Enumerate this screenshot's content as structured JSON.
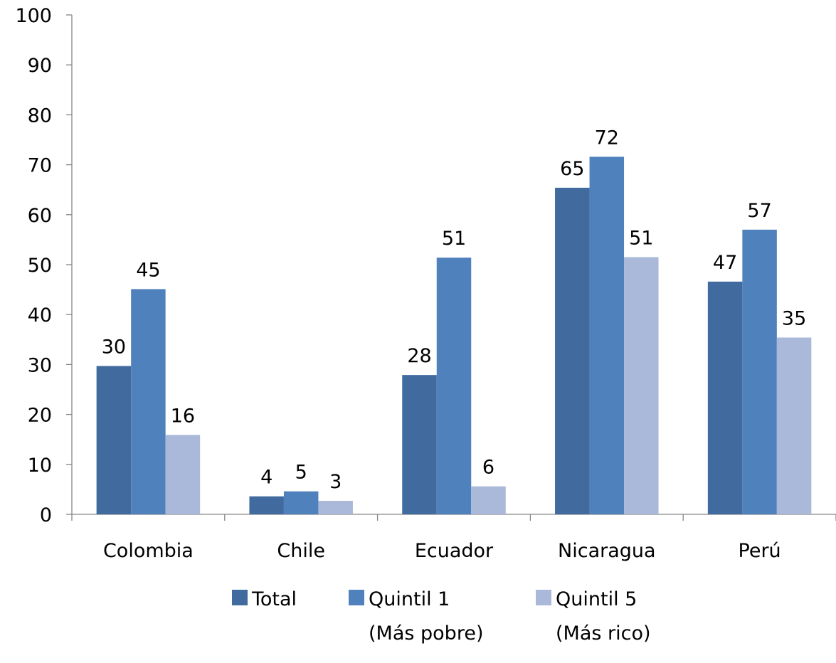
{
  "chart_data": {
    "type": "bar",
    "categories": [
      "Colombia",
      "Chile",
      "Ecuador",
      "Nicaragua",
      "Perú"
    ],
    "series": [
      {
        "name": "Total",
        "values": [
          29.7,
          3.6,
          27.9,
          65.4,
          46.6
        ],
        "labels": [
          "30",
          "4",
          "28",
          "65",
          "47"
        ],
        "color": "#416b9f"
      },
      {
        "name": "Quintil 1",
        "name_line2": "(Más pobre)",
        "values": [
          45.1,
          4.6,
          51.4,
          71.6,
          57.0
        ],
        "labels": [
          "45",
          "5",
          "51",
          "72",
          "57"
        ],
        "color": "#4f81bd"
      },
      {
        "name": "Quintil 5",
        "name_line2": "(Más rico)",
        "values": [
          15.9,
          2.7,
          5.6,
          51.5,
          35.4
        ],
        "labels": [
          "16",
          "3",
          "6",
          "51",
          "35"
        ],
        "color": "#aab9d9"
      }
    ],
    "ylim": [
      0,
      100
    ],
    "yticks": [
      "0",
      "10",
      "20",
      "30",
      "40",
      "50",
      "60",
      "70",
      "80",
      "90",
      "100"
    ],
    "grid": false,
    "legend_position": "bottom"
  }
}
